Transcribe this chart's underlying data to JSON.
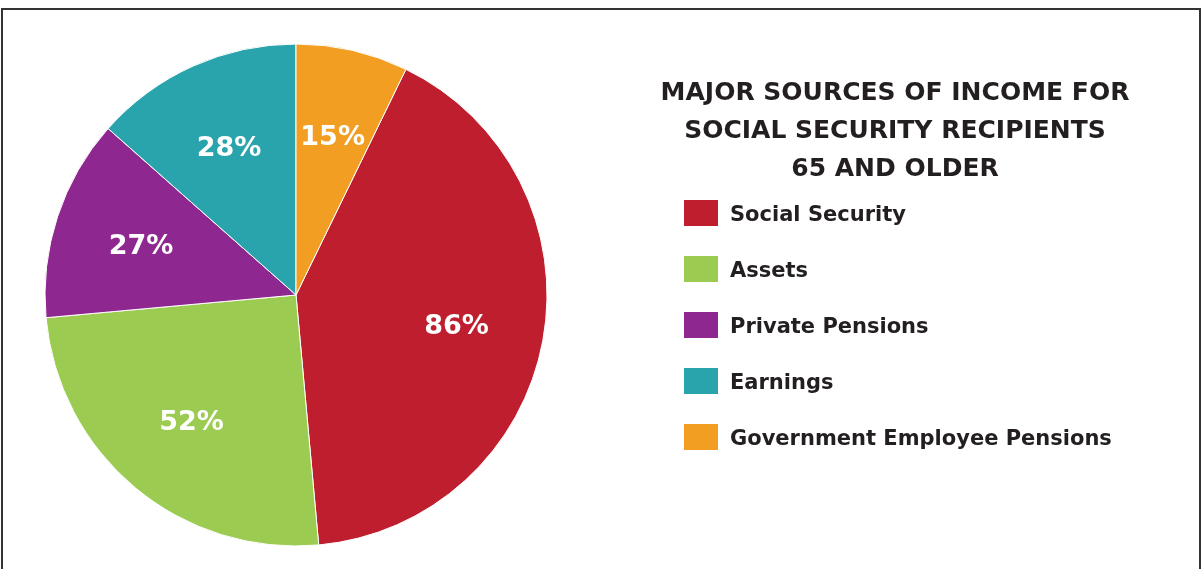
{
  "chart_data": {
    "type": "pie",
    "title": "MAJOR SOURCES OF INCOME FOR\nSOCIAL SECURITY RECIPIENTS\n65 AND OLDER",
    "categories": [
      "Social Security",
      "Assets",
      "Private Pensions",
      "Earnings",
      "Government Employee Pensions"
    ],
    "values": [
      86,
      52,
      27,
      28,
      15
    ],
    "colors": [
      "#be1e2d",
      "#9bcb50",
      "#8e278f",
      "#2aa4ac",
      "#f29e23"
    ],
    "value_labels": [
      "86%",
      "52%",
      "27%",
      "28%",
      "15%"
    ],
    "legend": "right"
  }
}
